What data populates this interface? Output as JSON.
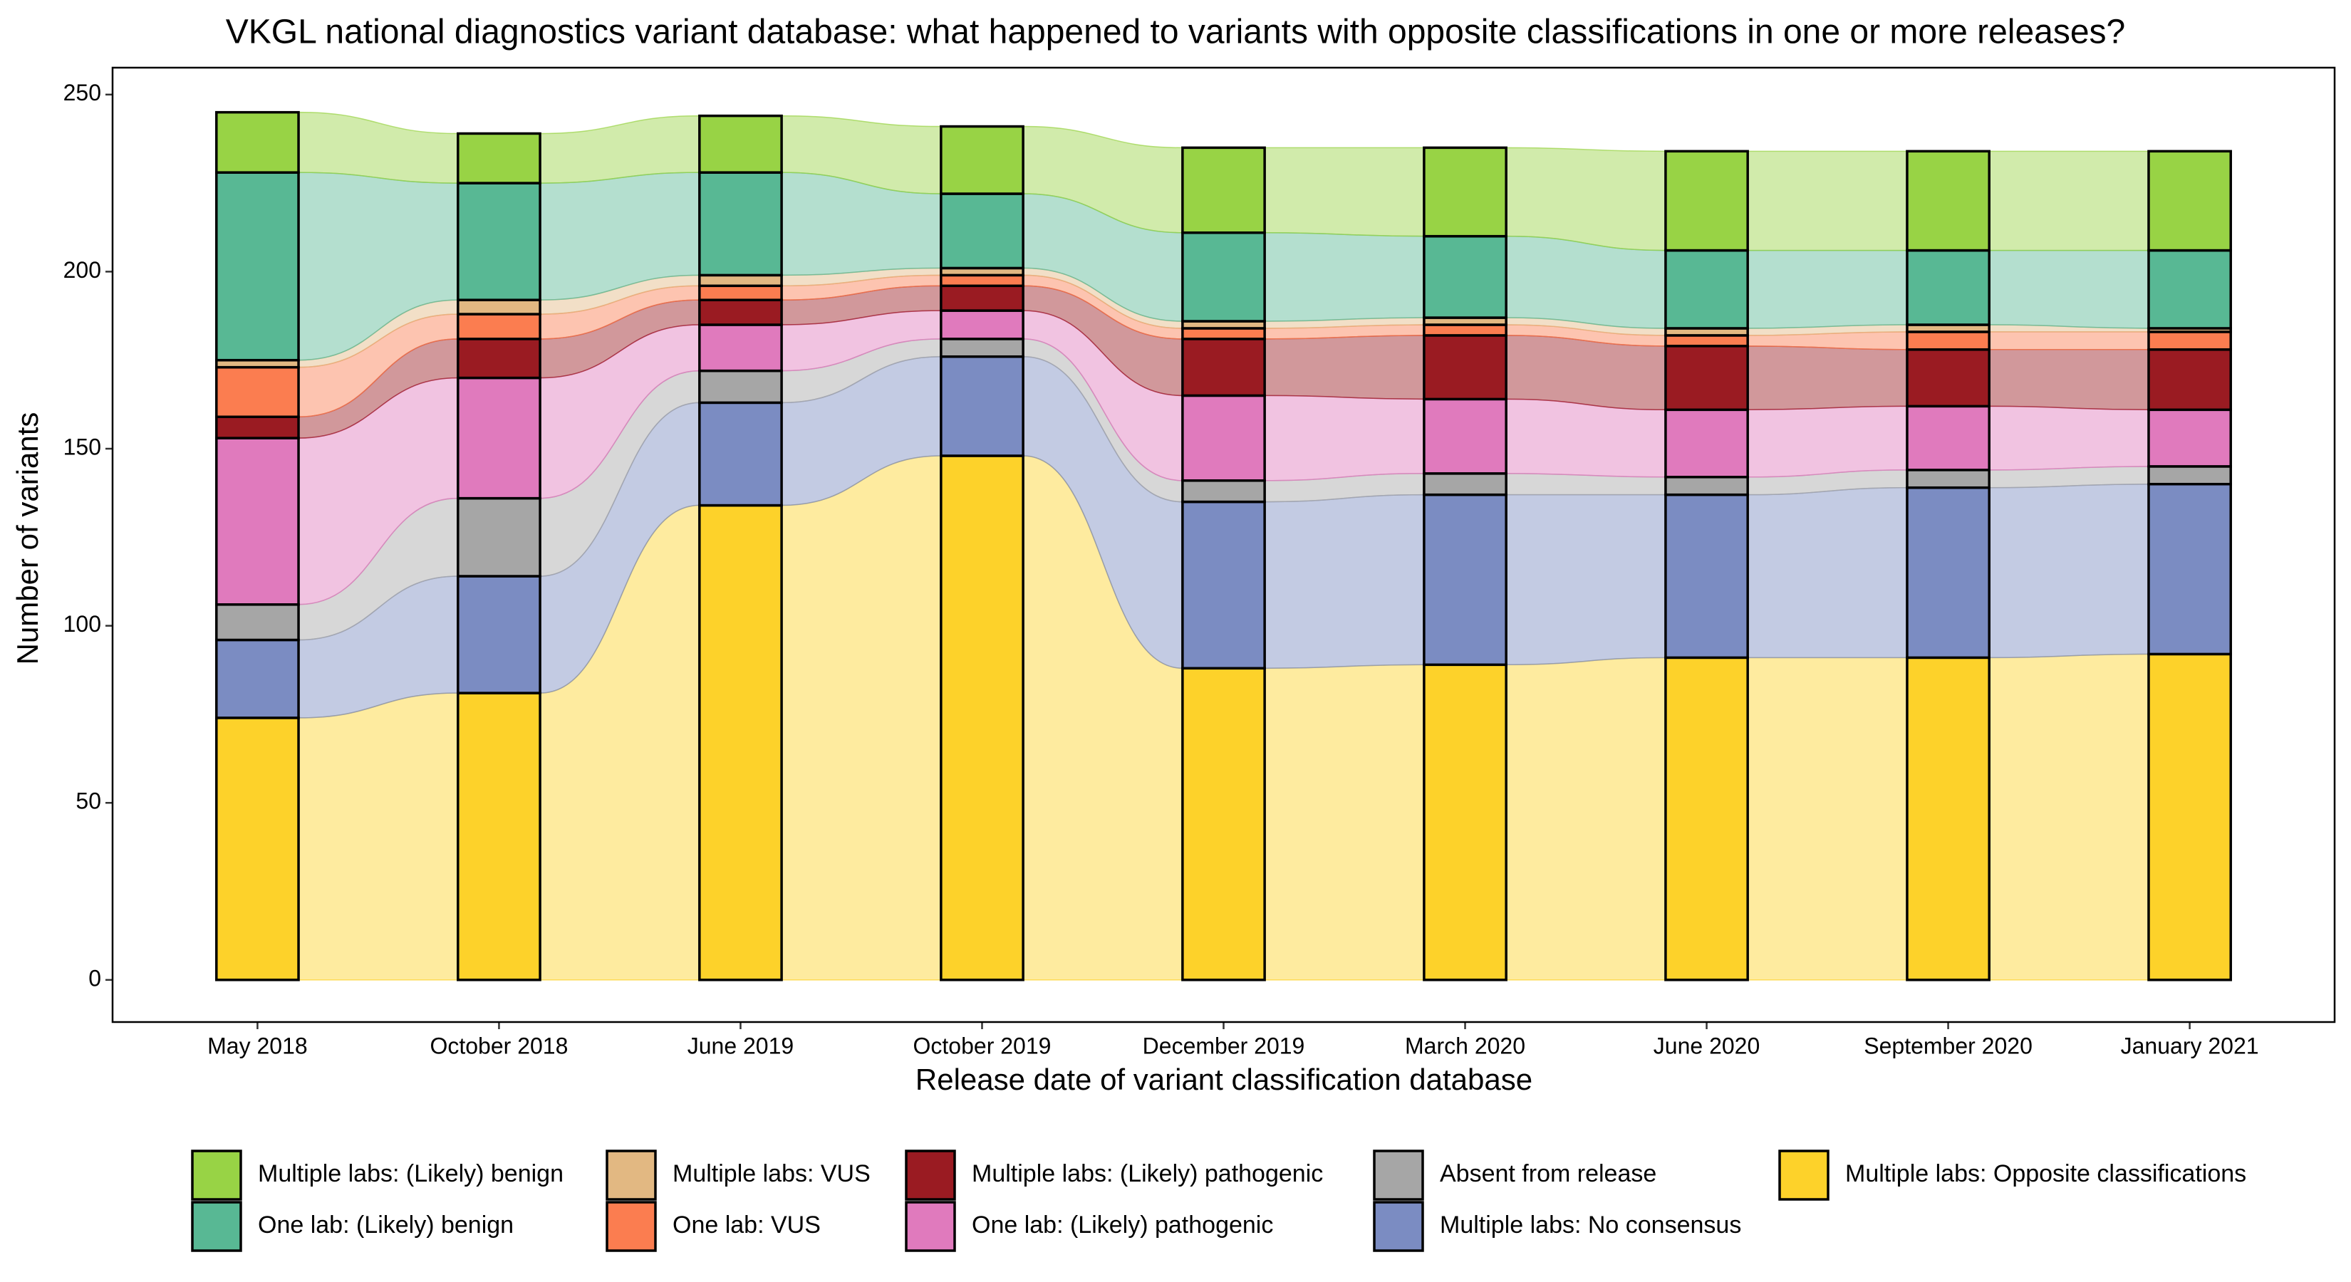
{
  "chart_data": {
    "type": "alluvial",
    "title": "VKGL national diagnostics variant database: what happened to variants with opposite classifications in one or more releases?",
    "x_label": "Release date of variant classification database",
    "y_label": "Number of variants",
    "categories": [
      "May 2018",
      "October 2018",
      "June 2019",
      "October 2019",
      "December 2019",
      "March 2020",
      "June 2020",
      "September 2020",
      "January 2021"
    ],
    "ylim": [
      -11.9,
      257.6
    ],
    "yticks": [
      0,
      50,
      100,
      150,
      200,
      250
    ],
    "series": [
      {
        "name": "Multiple labs: Opposite classifications",
        "color": "#fdd22a",
        "values": [
          74,
          81,
          134,
          148,
          88,
          89,
          91,
          91,
          92
        ]
      },
      {
        "name": "Multiple labs: No consensus",
        "color": "#7b8cc2",
        "values": [
          22,
          33,
          29,
          28,
          47,
          48,
          46,
          48,
          48
        ]
      },
      {
        "name": "Absent from release",
        "color": "#a6a6a6",
        "values": [
          10,
          22,
          9,
          5,
          6,
          6,
          5,
          5,
          5
        ]
      },
      {
        "name": "One lab: (Likely) pathogenic",
        "color": "#e07abd",
        "values": [
          47,
          34,
          13,
          8,
          24,
          21,
          19,
          18,
          16
        ]
      },
      {
        "name": "Multiple labs: (Likely) pathogenic",
        "color": "#9a1b22",
        "values": [
          6,
          11,
          7,
          7,
          16,
          18,
          18,
          16,
          17
        ]
      },
      {
        "name": "One lab: VUS",
        "color": "#fb7d50",
        "values": [
          14,
          7,
          4,
          3,
          3,
          3,
          3,
          5,
          5
        ]
      },
      {
        "name": "Multiple labs: VUS",
        "color": "#e2b882",
        "values": [
          2,
          4,
          3,
          2,
          2,
          2,
          2,
          2,
          1
        ]
      },
      {
        "name": "One lab: (Likely) benign",
        "color": "#58b894",
        "values": [
          53,
          33,
          29,
          21,
          25,
          23,
          22,
          21,
          22
        ]
      },
      {
        "name": "Multiple labs: (Likely) benign",
        "color": "#98d345",
        "values": [
          17,
          14,
          16,
          19,
          24,
          25,
          28,
          28,
          28
        ]
      }
    ]
  }
}
